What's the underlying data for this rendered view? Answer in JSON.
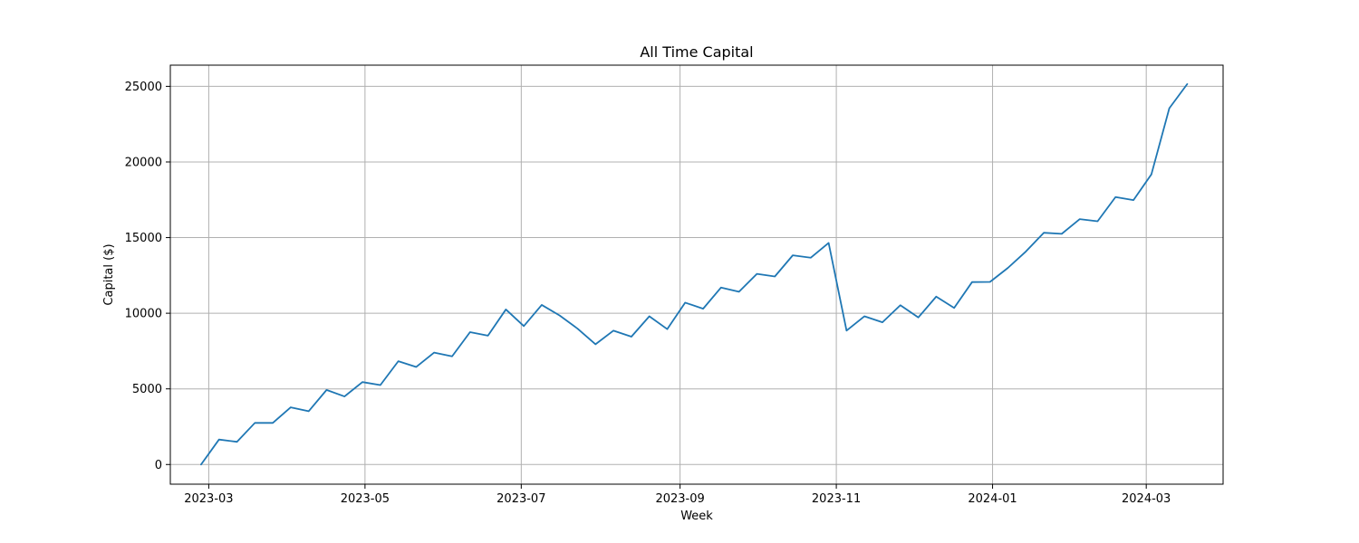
{
  "chart_data": {
    "type": "line",
    "title": "All Time Capital",
    "xlabel": "Week",
    "ylabel": "Capital ($)",
    "grid": true,
    "colors": {
      "series": "#1f77b4"
    },
    "xlim": [
      "2023-02-14",
      "2024-03-31"
    ],
    "ylim": [
      -1300,
      26400
    ],
    "x_ticks": [
      {
        "value": "2023-03-01",
        "label": "2023-03"
      },
      {
        "value": "2023-05-01",
        "label": "2023-05"
      },
      {
        "value": "2023-07-01",
        "label": "2023-07"
      },
      {
        "value": "2023-09-01",
        "label": "2023-09"
      },
      {
        "value": "2023-11-01",
        "label": "2023-11"
      },
      {
        "value": "2024-01-01",
        "label": "2024-01"
      },
      {
        "value": "2024-03-01",
        "label": "2024-03"
      }
    ],
    "y_ticks": [
      0,
      5000,
      10000,
      15000,
      20000,
      25000
    ],
    "x": [
      "2023-02-26",
      "2023-03-05",
      "2023-03-12",
      "2023-03-19",
      "2023-03-26",
      "2023-04-02",
      "2023-04-09",
      "2023-04-16",
      "2023-04-23",
      "2023-04-30",
      "2023-05-07",
      "2023-05-14",
      "2023-05-21",
      "2023-05-28",
      "2023-06-04",
      "2023-06-11",
      "2023-06-18",
      "2023-06-25",
      "2023-07-02",
      "2023-07-09",
      "2023-07-16",
      "2023-07-23",
      "2023-07-30",
      "2023-08-06",
      "2023-08-13",
      "2023-08-20",
      "2023-08-27",
      "2023-09-03",
      "2023-09-10",
      "2023-09-17",
      "2023-09-24",
      "2023-10-01",
      "2023-10-08",
      "2023-10-15",
      "2023-10-22",
      "2023-10-29",
      "2023-11-05",
      "2023-11-12",
      "2023-11-19",
      "2023-11-26",
      "2023-12-03",
      "2023-12-10",
      "2023-12-17",
      "2023-12-24",
      "2023-12-31",
      "2024-01-07",
      "2024-01-14",
      "2024-01-21",
      "2024-01-28",
      "2024-02-04",
      "2024-02-11",
      "2024-02-18",
      "2024-02-25",
      "2024-03-03",
      "2024-03-10",
      "2024-03-17"
    ],
    "series": [
      {
        "values": [
          0,
          1650,
          1500,
          2750,
          2750,
          3780,
          3520,
          4930,
          4500,
          5450,
          5250,
          6830,
          6450,
          7400,
          7150,
          8750,
          8520,
          10250,
          9150,
          10550,
          9850,
          8980,
          7950,
          8850,
          8450,
          9800,
          8950,
          10700,
          10300,
          11700,
          11420,
          12600,
          12430,
          13830,
          13670,
          14650,
          8850,
          9800,
          9400,
          10530,
          9720,
          11100,
          10350,
          12060,
          12070,
          13000,
          14080,
          15320,
          15250,
          16220,
          16080,
          17680,
          17480,
          19180,
          23550,
          25150
        ]
      }
    ]
  }
}
